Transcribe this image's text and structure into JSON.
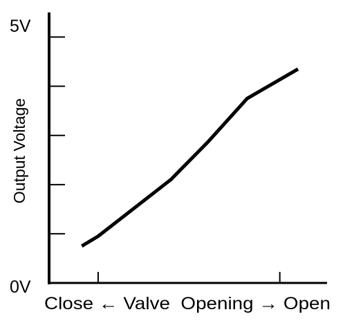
{
  "chart_data": {
    "type": "line",
    "title": "",
    "xlabel": "Close ← Valve  Opening → Open",
    "ylabel": "Output Voltage",
    "y_tick_labels": [
      {
        "value": 5,
        "label": "5V"
      },
      {
        "value": 0,
        "label": "0V"
      }
    ],
    "y_ticks": [
      0,
      1,
      2,
      3,
      4,
      5
    ],
    "x_ticks": [
      0,
      1
    ],
    "xlim": [
      -0.27,
      1.26
    ],
    "ylim": [
      0,
      5.5
    ],
    "series": [
      {
        "x": [
          -0.09,
          0.0,
          0.4,
          0.6,
          0.82,
          1.1
        ],
        "y": [
          0.75,
          0.95,
          2.1,
          2.85,
          3.75,
          4.35
        ]
      }
    ],
    "grid": false,
    "line_color": "#000000"
  }
}
